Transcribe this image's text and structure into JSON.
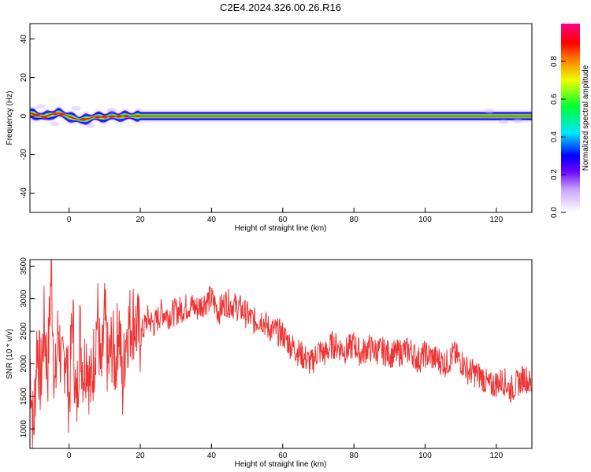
{
  "title": "C2E4.2024.326.00.26.R16",
  "chart_data": [
    {
      "type": "heatmap",
      "xlabel": "Height of straight line (km)",
      "ylabel": "Frequency (Hz)",
      "xlim": [
        -11,
        130
      ],
      "ylim": [
        -50,
        48
      ],
      "xticks": [
        0,
        20,
        40,
        60,
        80,
        100,
        120
      ],
      "yticks": [
        -40,
        -20,
        0,
        20,
        40
      ],
      "colorbar": {
        "label": "Normalized spectral amplitude",
        "ticks": [
          0.0,
          0.2,
          0.4,
          0.6,
          0.8
        ],
        "range": [
          0,
          1
        ]
      },
      "ridge": {
        "x": [
          -11,
          -9,
          -7,
          -5,
          -3,
          -1,
          1,
          3,
          5,
          7,
          9,
          11,
          13,
          15,
          17,
          19,
          25,
          40,
          60,
          80,
          100,
          115,
          130
        ],
        "y": [
          1.5,
          0.5,
          -0.5,
          1.0,
          1.5,
          0.5,
          -1.0,
          -2.0,
          -1.5,
          -0.5,
          -0.5,
          -0.3,
          -0.2,
          0,
          0,
          0,
          0,
          0,
          0,
          0,
          0,
          0,
          0
        ]
      },
      "grid": false,
      "legend": "none"
    },
    {
      "type": "line",
      "xlabel": "Height of straight line (km)",
      "ylabel": "SNR (10 * v/v)",
      "xlim": [
        -11,
        130
      ],
      "ylim": [
        700,
        3600
      ],
      "xticks": [
        0,
        20,
        40,
        60,
        80,
        100,
        120
      ],
      "yticks": [
        1000,
        1500,
        2000,
        2500,
        3000,
        3500
      ],
      "color": "#ee3333",
      "series": [
        {
          "x": [
            -11,
            -10,
            -9,
            -8,
            -7,
            -6,
            -5,
            -4,
            -3,
            -2,
            -1,
            0,
            1,
            2,
            3,
            4,
            5,
            6,
            7,
            8,
            9,
            10,
            11,
            12,
            13,
            14,
            15,
            16,
            18,
            20,
            22,
            24,
            26,
            28,
            30,
            32,
            34,
            36,
            38,
            40,
            42,
            44,
            46,
            48,
            50,
            52,
            54,
            56,
            58,
            60,
            62,
            64,
            66,
            68,
            70,
            72,
            74,
            76,
            78,
            80,
            82,
            84,
            86,
            88,
            90,
            92,
            94,
            96,
            98,
            100,
            102,
            104,
            106,
            108,
            110,
            112,
            114,
            116,
            118,
            120,
            122,
            124,
            126,
            128,
            130
          ],
          "y": [
            2100,
            900,
            2400,
            1700,
            2600,
            1900,
            3500,
            1500,
            2600,
            1800,
            2300,
            1400,
            2800,
            1200,
            2500,
            1900,
            2200,
            1600,
            2100,
            2800,
            1700,
            2700,
            1900,
            2300,
            2000,
            2700,
            1600,
            2500,
            2700,
            2400,
            2700,
            2600,
            2800,
            2750,
            2800,
            2850,
            2900,
            2850,
            2950,
            3000,
            2800,
            2950,
            2900,
            2850,
            2750,
            2650,
            2700,
            2550,
            2500,
            2450,
            2300,
            2200,
            2100,
            2000,
            2200,
            2150,
            2300,
            2250,
            2200,
            2300,
            2150,
            2250,
            2200,
            2200,
            2150,
            2150,
            2200,
            2200,
            2050,
            2150,
            2100,
            2050,
            2000,
            2150,
            2050,
            1900,
            1850,
            1800,
            1650,
            1700,
            1750,
            1600,
            1700,
            1800,
            1650
          ]
        }
      ],
      "grid": false,
      "legend": "none"
    }
  ]
}
